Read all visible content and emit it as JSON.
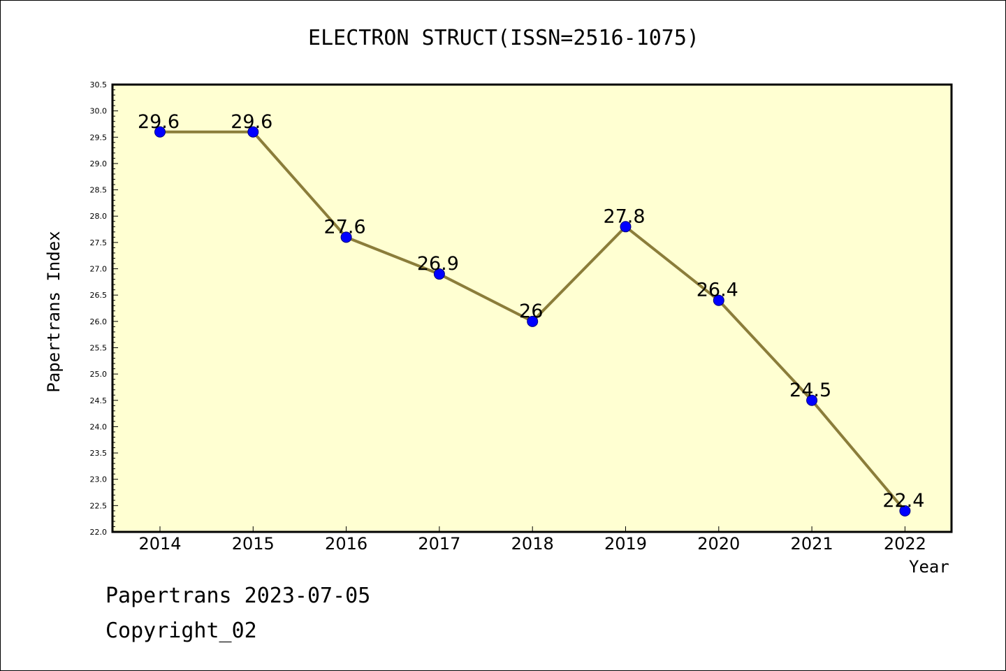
{
  "chart_data": {
    "type": "line",
    "title": "ELECTRON STRUCT(ISSN=2516-1075)",
    "xlabel": "Year",
    "ylabel": "Papertrans Index",
    "categories": [
      "2014",
      "2015",
      "2016",
      "2017",
      "2018",
      "2019",
      "2020",
      "2021",
      "2022"
    ],
    "series": [
      {
        "values": [
          29.6,
          29.6,
          27.6,
          26.9,
          26,
          27.8,
          26.4,
          24.5,
          22.4
        ],
        "data_labels": [
          "29.6",
          "29.6",
          "27.6",
          "26.9",
          "26",
          "27.8",
          "26.4",
          "24.5",
          "22.4"
        ]
      }
    ],
    "ylim": [
      22.0,
      30.5
    ],
    "yticks": [
      "22.0",
      "22.5",
      "23.0",
      "23.5",
      "24.0",
      "24.5",
      "25.0",
      "25.5",
      "26.0",
      "26.5",
      "27.0",
      "27.5",
      "28.0",
      "28.5",
      "29.0",
      "29.5",
      "30.0",
      "30.5"
    ],
    "grid": false,
    "legend": "none",
    "colors": {
      "plot_background": "#ffffd2",
      "line": "#8b7d3a",
      "marker": "#0000ff",
      "marker_edge": "#000080"
    }
  },
  "footer": {
    "line1": "Papertrans 2023-07-05",
    "line2": "Copyright_02"
  }
}
